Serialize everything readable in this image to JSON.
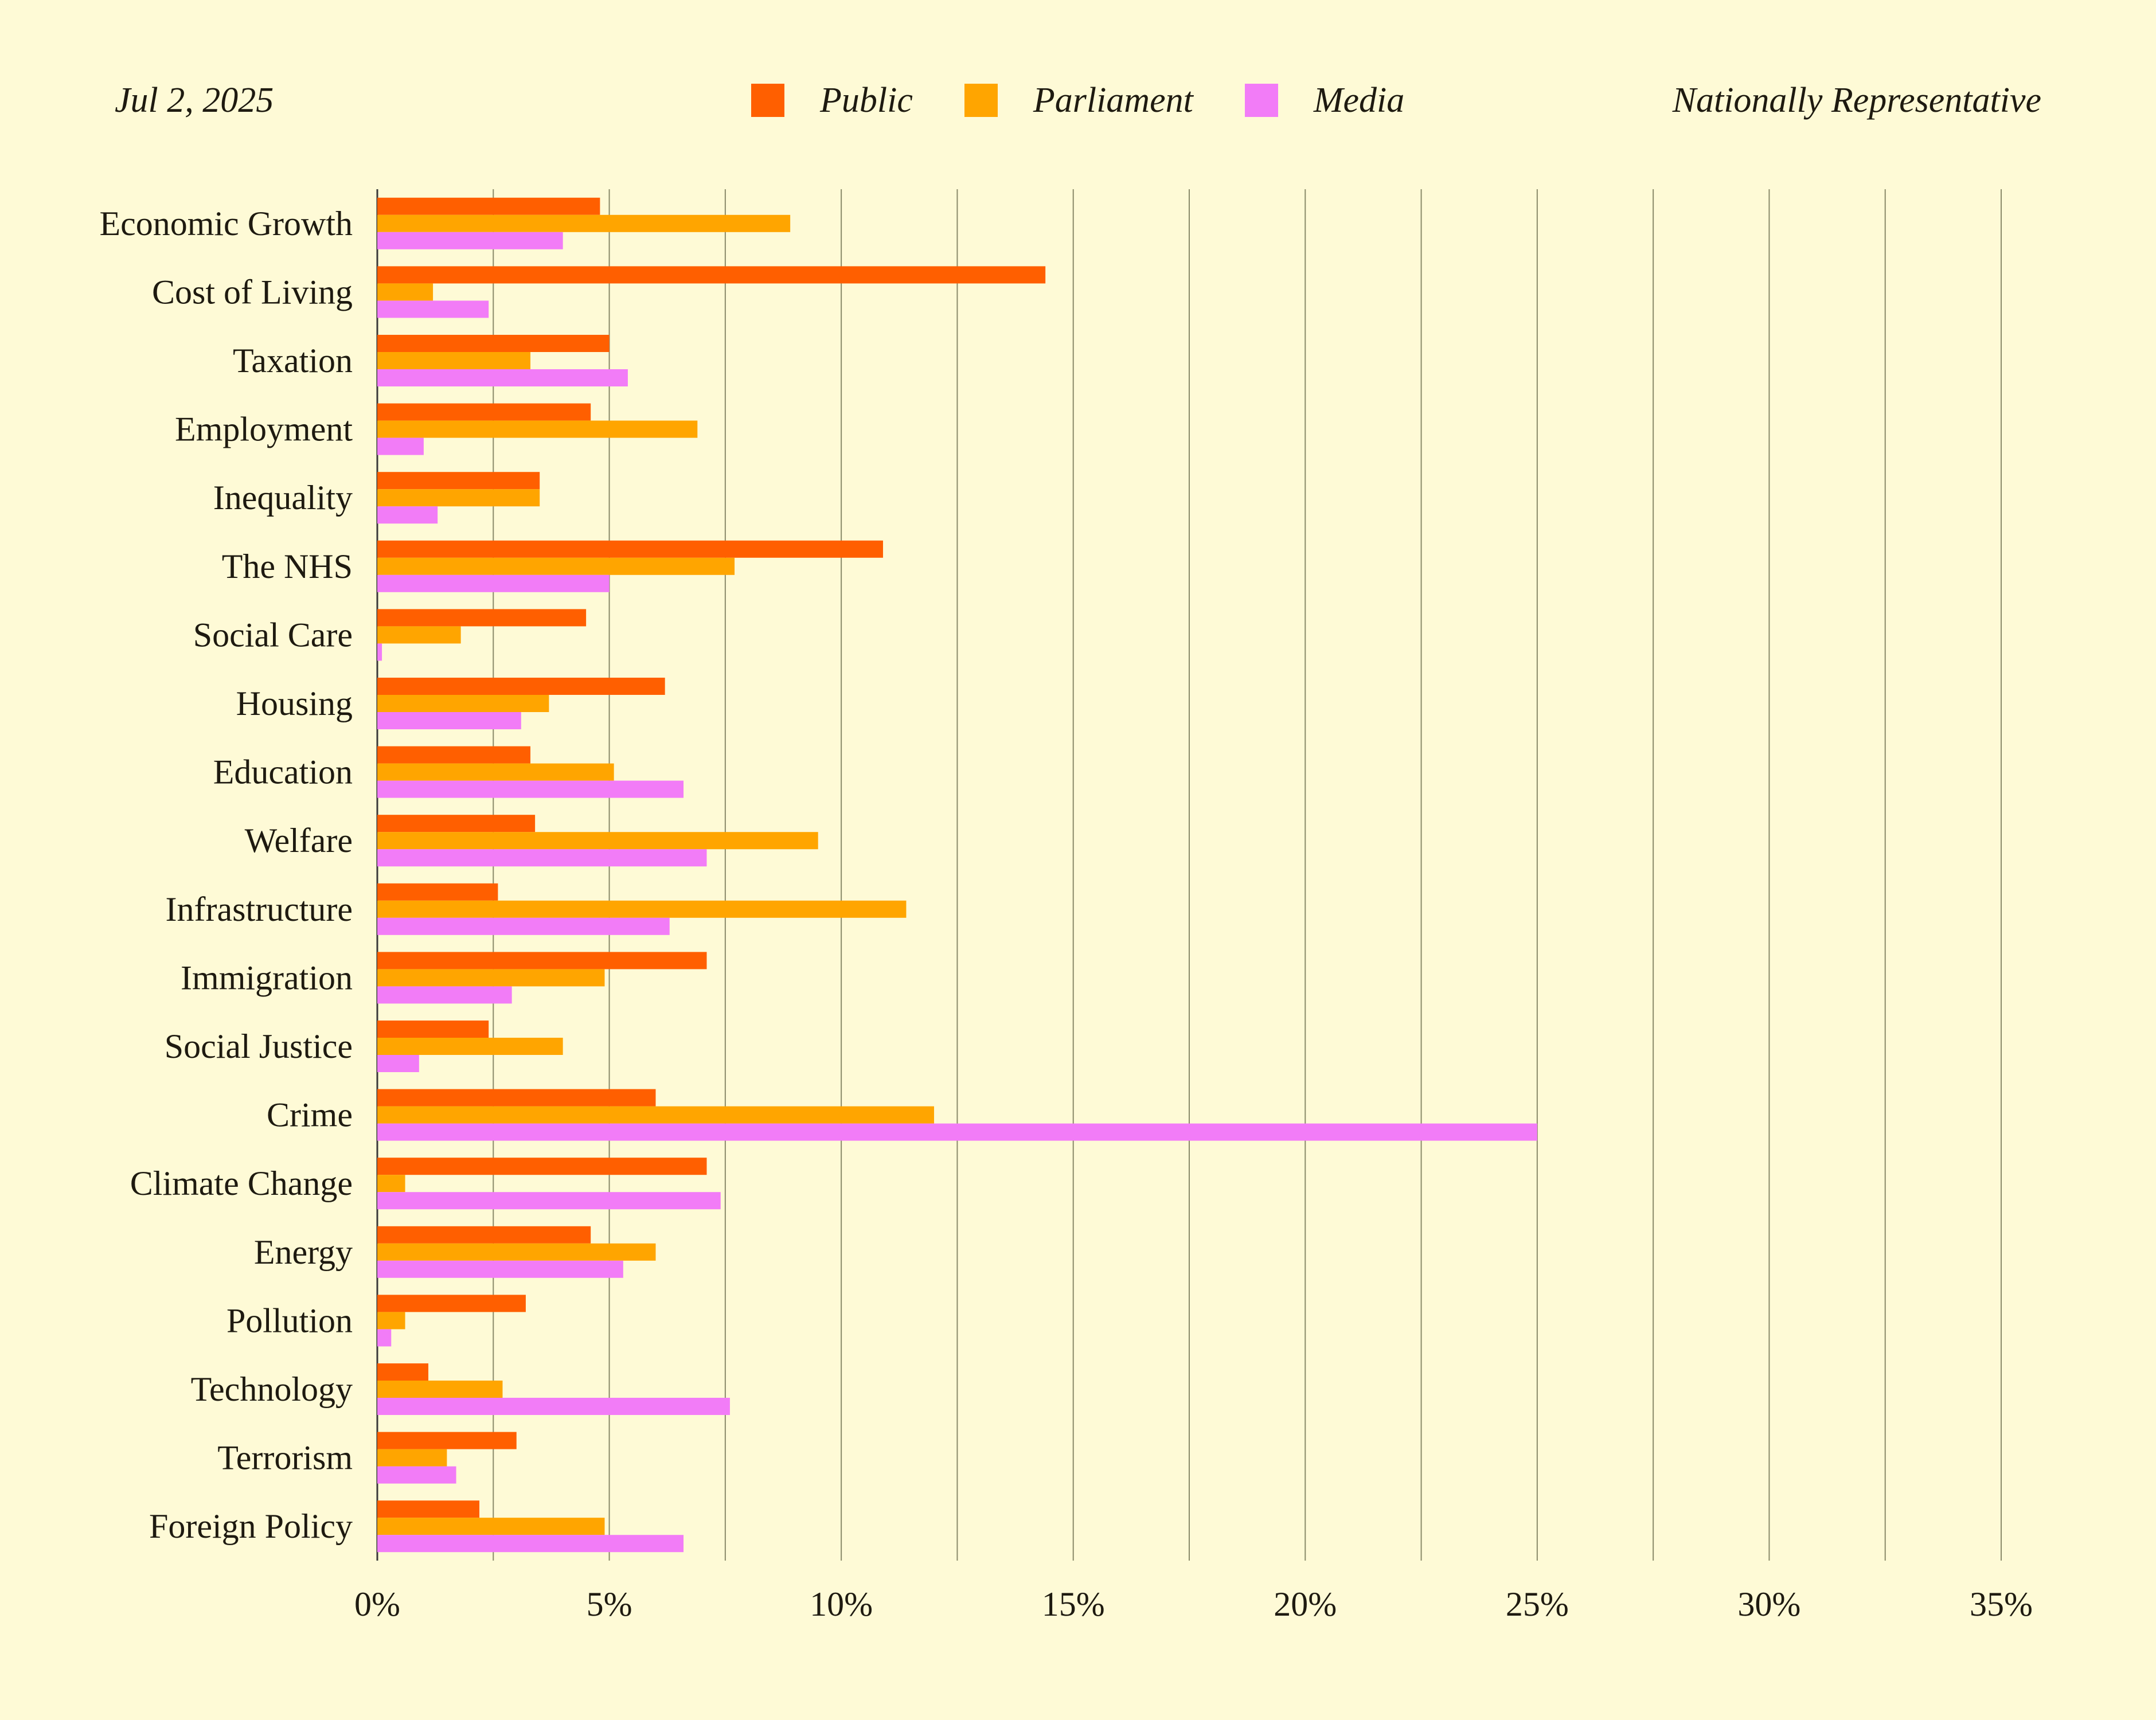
{
  "header": {
    "date": "Jul 2, 2025",
    "sample": "Nationally Representative"
  },
  "chart_data": {
    "type": "bar",
    "orientation": "horizontal",
    "categories": [
      "Economic Growth",
      "Cost of Living",
      "Taxation",
      "Employment",
      "Inequality",
      "The NHS",
      "Social Care",
      "Housing",
      "Education",
      "Welfare",
      "Infrastructure",
      "Immigration",
      "Social Justice",
      "Crime",
      "Climate Change",
      "Energy",
      "Pollution",
      "Technology",
      "Terrorism",
      "Foreign Policy"
    ],
    "series": [
      {
        "name": "Public",
        "color": "#ff5f00",
        "values": [
          4.8,
          14.4,
          5.0,
          4.6,
          3.5,
          10.9,
          4.5,
          6.2,
          3.3,
          3.4,
          2.6,
          7.1,
          2.4,
          6.0,
          7.1,
          4.6,
          3.2,
          1.1,
          3.0,
          2.2
        ]
      },
      {
        "name": "Parliament",
        "color": "#ffa500",
        "values": [
          8.9,
          1.2,
          3.3,
          6.9,
          3.5,
          7.7,
          1.8,
          3.7,
          5.1,
          9.5,
          11.4,
          4.9,
          4.0,
          12.0,
          0.6,
          6.0,
          0.6,
          2.7,
          1.5,
          4.9
        ]
      },
      {
        "name": "Media",
        "color": "#f27cf7",
        "values": [
          4.0,
          2.4,
          5.4,
          1.0,
          1.3,
          5.0,
          0.1,
          3.1,
          6.6,
          7.1,
          6.3,
          2.9,
          0.9,
          25.0,
          7.4,
          5.3,
          0.3,
          7.6,
          1.7,
          6.6
        ]
      }
    ],
    "x_ticks": [
      "0%",
      "5%",
      "10%",
      "15%",
      "20%",
      "25%",
      "30%",
      "35%"
    ],
    "xlim": [
      0,
      35
    ],
    "x_unit": "%",
    "grid": "vertical",
    "legend_position": "top-center"
  }
}
